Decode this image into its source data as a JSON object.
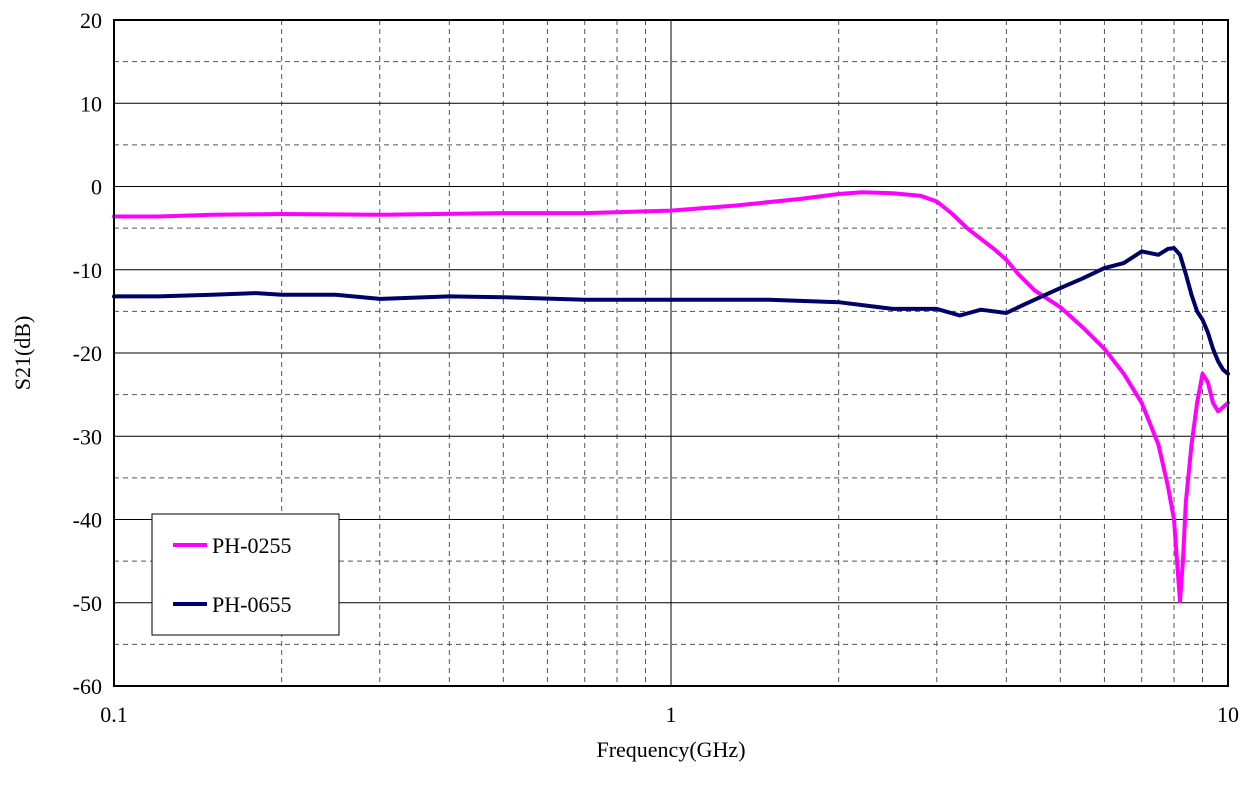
{
  "chart_data": {
    "type": "line",
    "title": "",
    "xlabel": "Frequency(GHz)",
    "ylabel": "S21(dB)",
    "xscale": "log",
    "xlim": [
      0.1,
      10
    ],
    "ylim": [
      -60,
      20
    ],
    "x_tick_labels": [
      "0.1",
      "1",
      "10"
    ],
    "y_tick_labels": [
      "20",
      "10",
      "0",
      "-10",
      "-20",
      "-30",
      "-40",
      "-50",
      "-60"
    ],
    "grid": "on (major solid, minor dashed)",
    "legend_placement": "bottom-left",
    "series": [
      {
        "name": "PH-0255",
        "color": "#ff00ff",
        "x": [
          0.1,
          0.12,
          0.15,
          0.2,
          0.3,
          0.5,
          0.7,
          1.0,
          1.3,
          1.7,
          2.0,
          2.2,
          2.5,
          2.8,
          3.0,
          3.2,
          3.4,
          3.6,
          3.8,
          4.0,
          4.2,
          4.5,
          5.0,
          5.5,
          6.0,
          6.5,
          7.0,
          7.5,
          7.8,
          8.0,
          8.1,
          8.2,
          8.3,
          8.4,
          8.6,
          8.8,
          9.0,
          9.2,
          9.4,
          9.6,
          9.8,
          10.0
        ],
        "y": [
          -3.6,
          -3.6,
          -3.4,
          -3.3,
          -3.4,
          -3.2,
          -3.2,
          -2.9,
          -2.3,
          -1.5,
          -0.9,
          -0.7,
          -0.8,
          -1.1,
          -1.8,
          -3.3,
          -5.0,
          -6.3,
          -7.5,
          -8.8,
          -10.5,
          -12.5,
          -14.5,
          -17.0,
          -19.5,
          -22.5,
          -26.0,
          -31.0,
          -36.0,
          -40.0,
          -45.0,
          -49.8,
          -45.0,
          -38.0,
          -31.0,
          -26.0,
          -22.5,
          -23.5,
          -26.0,
          -27.0,
          -26.5,
          -26.0
        ]
      },
      {
        "name": "PH-0655",
        "color": "#000066",
        "x": [
          0.1,
          0.12,
          0.15,
          0.18,
          0.2,
          0.25,
          0.3,
          0.4,
          0.5,
          0.7,
          1.0,
          1.5,
          2.0,
          2.5,
          3.0,
          3.3,
          3.6,
          4.0,
          4.3,
          4.6,
          5.0,
          5.5,
          6.0,
          6.5,
          7.0,
          7.5,
          7.8,
          8.0,
          8.2,
          8.4,
          8.6,
          8.8,
          9.0,
          9.2,
          9.4,
          9.6,
          9.8,
          10.0
        ],
        "y": [
          -13.2,
          -13.2,
          -13.0,
          -12.8,
          -13.0,
          -13.0,
          -13.5,
          -13.2,
          -13.3,
          -13.6,
          -13.6,
          -13.6,
          -13.9,
          -14.7,
          -14.7,
          -15.5,
          -14.8,
          -15.2,
          -14.2,
          -13.3,
          -12.2,
          -11.0,
          -9.8,
          -9.2,
          -7.8,
          -8.2,
          -7.5,
          -7.4,
          -8.2,
          -10.5,
          -13.0,
          -15.0,
          -16.0,
          -17.5,
          -19.5,
          -21.0,
          -22.0,
          -22.5
        ]
      }
    ]
  }
}
